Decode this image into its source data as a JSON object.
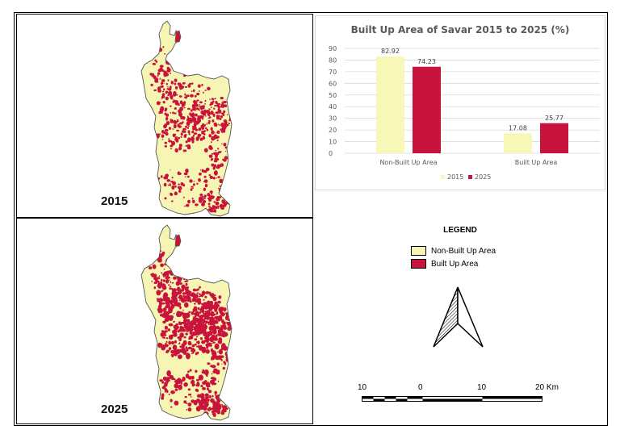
{
  "maps": {
    "top": {
      "year": "2015",
      "builtup_share": 17.08
    },
    "bottom": {
      "year": "2025",
      "builtup_share": 25.77
    }
  },
  "colors": {
    "non_built": "#f6f5b4",
    "built": "#c8143c",
    "outline": "#555555",
    "bar_2015": "#f7f7b8",
    "bar_2025": "#c8143c"
  },
  "chart_data": {
    "type": "bar",
    "title": "Built Up Area of Savar 2015 to 2025 (%)",
    "categories": [
      "Non-Built Up Area",
      "Built Up Area"
    ],
    "series": [
      {
        "name": "2015",
        "values": [
          82.92,
          17.08
        ]
      },
      {
        "name": "2025",
        "values": [
          74.23,
          25.77
        ]
      }
    ],
    "ylim": [
      0,
      90
    ],
    "yticks": [
      "0",
      "10",
      "20",
      "30",
      "40",
      "50",
      "60",
      "70",
      "80",
      "90"
    ],
    "data_labels": [
      [
        "82.92",
        "17.08"
      ],
      [
        "74.23",
        "25.77"
      ]
    ],
    "grid": true,
    "legend_position": "bottom"
  },
  "legend": {
    "title": "LEGEND",
    "items": [
      {
        "label": "Non-Built Up Area",
        "color": "#f6f5b4"
      },
      {
        "label": "Built Up Area",
        "color": "#c8143c"
      }
    ]
  },
  "scale_bar": {
    "labels": [
      "10",
      "0",
      "10",
      "20 Km"
    ]
  },
  "north_arrow": {
    "icon": "north-arrow-icon"
  }
}
